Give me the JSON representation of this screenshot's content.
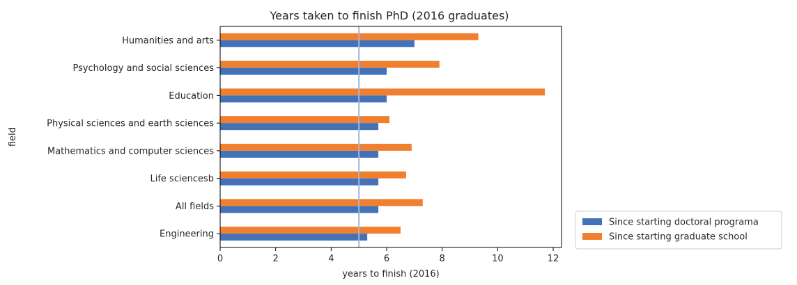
{
  "chart_data": {
    "type": "bar",
    "orientation": "horizontal",
    "title": "Years taken to finish PhD (2016 graduates)",
    "xlabel": "years to finish (2016)",
    "ylabel": "field",
    "xlim": [
      0,
      12.3
    ],
    "xticks": [
      0,
      2,
      4,
      6,
      8,
      10,
      12
    ],
    "categories": [
      "Humanities and arts",
      "Psychology and social sciences",
      "Education",
      "Physical sciences and earth sciences",
      "Mathematics and computer sciences",
      "Life sciencesb",
      "All fields",
      "Engineering"
    ],
    "series": [
      {
        "name": "Since starting doctoral programa",
        "color": "#4472b8",
        "values": [
          7.0,
          6.0,
          6.0,
          5.7,
          5.7,
          5.7,
          5.7,
          5.3
        ]
      },
      {
        "name": "Since starting graduate school",
        "color": "#f08030",
        "values": [
          9.3,
          7.9,
          11.7,
          6.1,
          6.9,
          6.7,
          7.3,
          6.5
        ]
      }
    ],
    "reference_line": {
      "x": 5,
      "color": "#9fb8d8"
    },
    "grid": false,
    "legend_position": "outside-bottom-right"
  }
}
